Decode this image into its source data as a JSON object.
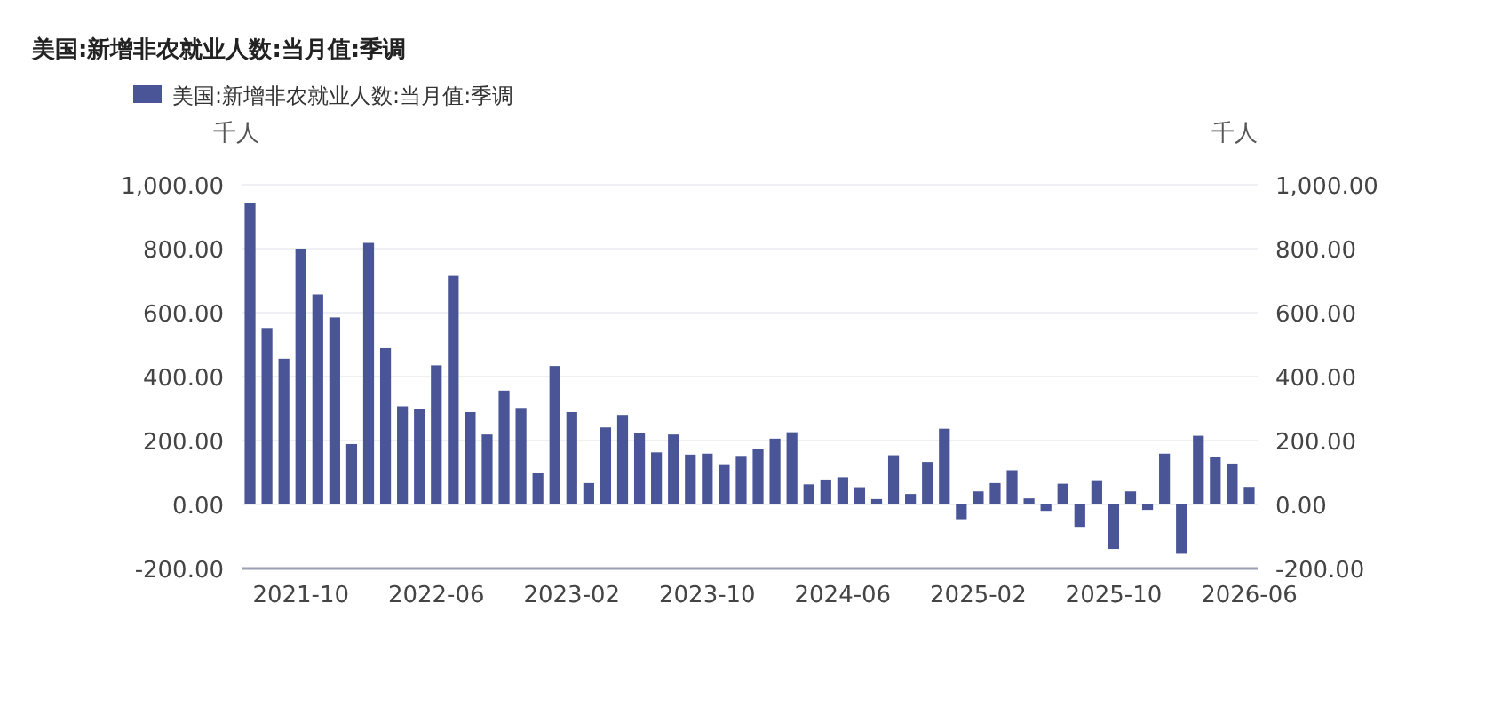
{
  "chart_data": {
    "type": "bar",
    "title": "美国:新增非农就业人数:当月值:季调",
    "ylabel": "千人",
    "y2label": "千人",
    "categories": [
      null,
      null,
      null,
      "2021-10",
      null,
      null,
      null,
      null,
      null,
      null,
      null,
      "2022-06",
      null,
      null,
      null,
      null,
      null,
      null,
      null,
      "2023-02",
      null,
      null,
      null,
      null,
      null,
      null,
      null,
      "2023-10",
      null,
      null,
      null,
      null,
      null,
      null,
      null,
      "2024-06",
      null,
      null,
      null,
      null,
      null,
      null,
      null,
      "2025-02",
      null,
      null,
      null,
      null,
      null,
      null,
      null,
      "2025-10",
      null,
      null,
      null,
      null,
      null,
      null,
      null,
      "2026-06"
    ],
    "series": [
      {
        "name": "美国:新增非农就业人数:当月值:季调",
        "color": "#4a5597",
        "values": [
          943,
          552,
          456,
          800,
          657,
          585,
          189,
          818,
          489,
          307,
          300,
          435,
          715,
          289,
          219,
          356,
          302,
          100,
          433,
          289,
          67,
          241,
          280,
          224,
          163,
          219,
          156,
          159,
          126,
          152,
          174,
          206,
          226,
          63,
          78,
          85,
          54,
          17,
          154,
          33,
          133,
          237,
          -46,
          41,
          67,
          107,
          19,
          -20,
          65,
          -70,
          76,
          -139,
          41,
          -17,
          159,
          -154,
          215,
          148,
          128,
          55
        ]
      }
    ],
    "ylim": [
      -200,
      1000
    ],
    "yticks": [
      {
        "value": -200,
        "label": "-200.00"
      },
      {
        "value": 0,
        "label": "0.00"
      },
      {
        "value": 200,
        "label": "200.00"
      },
      {
        "value": 400,
        "label": "400.00"
      },
      {
        "value": 600,
        "label": "600.00"
      },
      {
        "value": 800,
        "label": "800.00"
      },
      {
        "value": 1000,
        "label": "1,000.00"
      }
    ],
    "y2lim": [
      -200,
      1000
    ],
    "y2ticks": [
      {
        "value": -200,
        "label": "-200.00"
      },
      {
        "value": 0,
        "label": "0.00"
      },
      {
        "value": 200,
        "label": "200.00"
      },
      {
        "value": 400,
        "label": "400.00"
      },
      {
        "value": 600,
        "label": "600.00"
      },
      {
        "value": 800,
        "label": "800.00"
      },
      {
        "value": 1000,
        "label": "1,000.00"
      }
    ],
    "grid": "y",
    "legend": "top left"
  }
}
